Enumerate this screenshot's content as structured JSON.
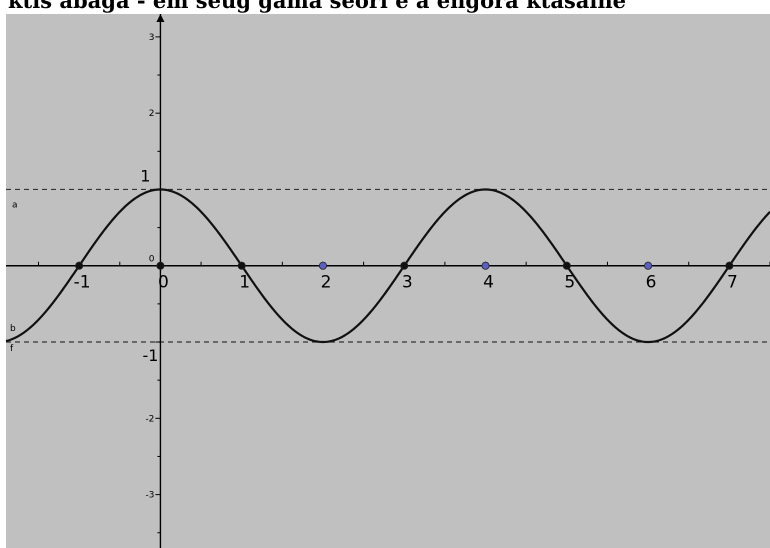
{
  "header": {
    "text": "ktis abaga - em seug gama seori e a engora ktasalhe"
  },
  "chart_data": {
    "type": "line",
    "title": "",
    "xlabel": "",
    "ylabel": "",
    "xlim": [
      -1.9,
      7.5
    ],
    "ylim": [
      -3.7,
      3.3
    ],
    "grid": false,
    "function": "cos(pi*x/2)",
    "series": [
      {
        "x": [
          -1.9,
          -1.5,
          -1,
          -0.5,
          0,
          0.5,
          1,
          1.5,
          2,
          2.5,
          3,
          3.5,
          4,
          4.5,
          5,
          5.5,
          6,
          6.5,
          7,
          7.5
        ],
        "y": [
          -0.156,
          -0.707,
          0,
          0.707,
          1,
          0.707,
          0,
          -0.707,
          -1,
          -0.707,
          0,
          0.707,
          1,
          0.707,
          0,
          -0.707,
          -1,
          -0.707,
          0,
          0.707
        ]
      }
    ],
    "x_ticks": [
      {
        "value": -1,
        "label": "-1"
      },
      {
        "value": 0,
        "label": "0"
      },
      {
        "value": 1,
        "label": "1"
      },
      {
        "value": 2,
        "label": "2"
      },
      {
        "value": 3,
        "label": "3"
      },
      {
        "value": 4,
        "label": "4"
      },
      {
        "value": 5,
        "label": "5"
      },
      {
        "value": 6,
        "label": "6"
      },
      {
        "value": 7,
        "label": "7"
      }
    ],
    "y_ticks": [
      {
        "value": 3,
        "label": "3"
      },
      {
        "value": 2,
        "label": "2"
      },
      {
        "value": -2,
        "label": "-2"
      },
      {
        "value": -3,
        "label": "-3"
      }
    ],
    "origin_label": "0",
    "y_markers": [
      {
        "value": 1,
        "label": "1"
      },
      {
        "value": -1,
        "label": "-1"
      }
    ],
    "horizontal_lines": [
      {
        "y": 1,
        "name": "a",
        "style": "dashed"
      },
      {
        "y": -1,
        "name": "b",
        "style": "dashed"
      }
    ],
    "curve_label": "f",
    "points": [
      {
        "x": -1,
        "y": 0,
        "color": "#111111"
      },
      {
        "x": 0,
        "y": 0,
        "color": "#111111"
      },
      {
        "x": 1,
        "y": 0,
        "color": "#111111"
      },
      {
        "x": 2,
        "y": 0,
        "color": "#5b5fc4"
      },
      {
        "x": 3,
        "y": 0,
        "color": "#111111"
      },
      {
        "x": 4,
        "y": 0,
        "color": "#5b5fc4"
      },
      {
        "x": 5,
        "y": 0,
        "color": "#111111"
      },
      {
        "x": 6,
        "y": 0,
        "color": "#5b5fc4"
      },
      {
        "x": 7,
        "y": 0,
        "color": "#111111"
      }
    ],
    "colors": {
      "background": "#c0c0c0",
      "curve": "#111111",
      "axis": "#000000",
      "dashed": "#333333"
    }
  }
}
